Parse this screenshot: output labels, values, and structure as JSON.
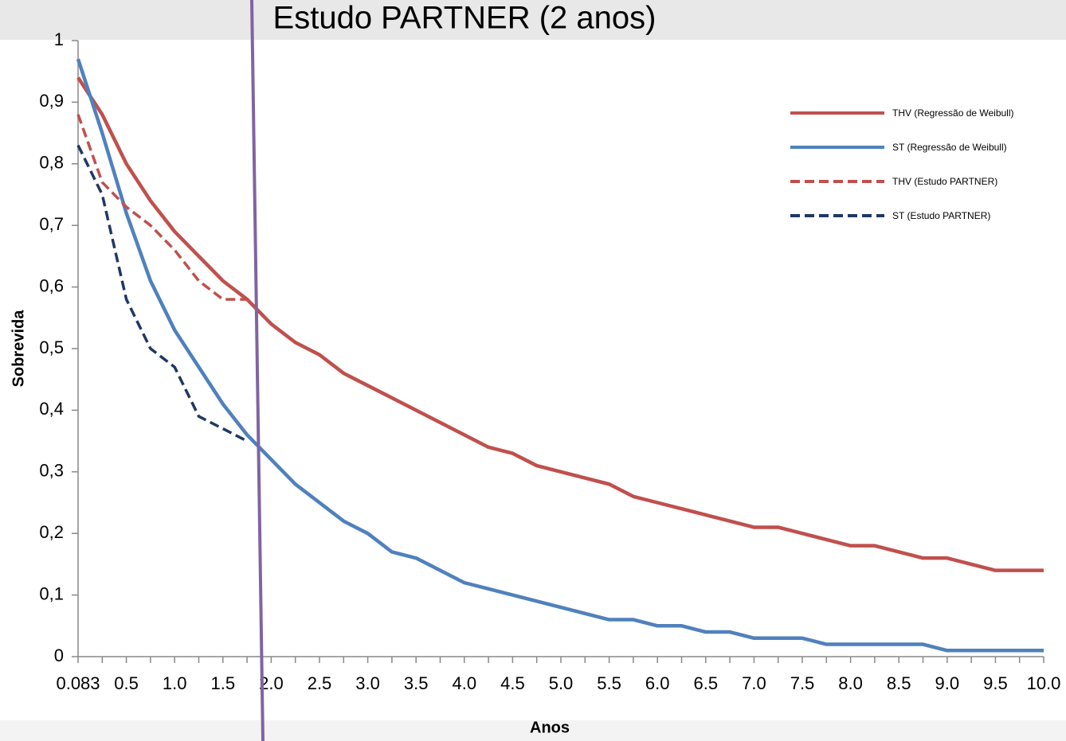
{
  "chart_data": {
    "type": "line",
    "title": "Estudo PARTNER (2 anos)",
    "x_label": "Anos",
    "y_label": "Sobrevida",
    "categories": [
      "0.083",
      null,
      "0.5",
      null,
      "1.0",
      null,
      "1.5",
      null,
      "2.0",
      null,
      "2.5",
      null,
      "3.0",
      null,
      "3.5",
      null,
      "4.0",
      null,
      "4.5",
      null,
      "5.0",
      null,
      "5.5",
      null,
      "6.0",
      null,
      "6.5",
      null,
      "7.0",
      null,
      "7.5",
      null,
      "8.0",
      null,
      "8.5",
      null,
      "9.0",
      null,
      "9.5",
      null,
      "10.0"
    ],
    "series": [
      {
        "name": "THV (Regressão de Weibull)",
        "color": "#c0504d",
        "dashed": false,
        "values": [
          0.94,
          0.88,
          0.8,
          0.74,
          0.69,
          0.65,
          0.61,
          0.58,
          0.54,
          0.51,
          0.49,
          0.46,
          0.44,
          0.42,
          0.4,
          0.38,
          0.36,
          0.34,
          0.33,
          0.31,
          0.3,
          0.29,
          0.28,
          0.26,
          0.25,
          0.24,
          0.23,
          0.22,
          0.21,
          0.21,
          0.2,
          0.19,
          0.18,
          0.18,
          0.17,
          0.16,
          0.16,
          0.15,
          0.14,
          0.14,
          0.14
        ]
      },
      {
        "name": "ST (Regressão de Weibull)",
        "color": "#4f81bd",
        "dashed": false,
        "values": [
          0.97,
          0.85,
          0.72,
          0.61,
          0.53,
          0.47,
          0.41,
          0.36,
          0.32,
          0.28,
          0.25,
          0.22,
          0.2,
          0.17,
          0.16,
          0.14,
          0.12,
          0.11,
          0.1,
          0.09,
          0.08,
          0.07,
          0.06,
          0.06,
          0.05,
          0.05,
          0.04,
          0.04,
          0.03,
          0.03,
          0.03,
          0.02,
          0.02,
          0.02,
          0.02,
          0.02,
          0.01,
          0.01,
          0.01,
          0.01,
          0.01
        ]
      },
      {
        "name": "THV (Estudo PARTNER)",
        "color": "#c0504d",
        "dashed": true,
        "values": [
          0.88,
          0.77,
          0.73,
          0.7,
          0.66,
          0.61,
          0.58,
          0.58,
          null,
          null,
          null,
          null,
          null,
          null,
          null,
          null,
          null,
          null,
          null,
          null,
          null,
          null,
          null,
          null,
          null,
          null,
          null,
          null,
          null,
          null,
          null,
          null,
          null,
          null,
          null,
          null,
          null,
          null,
          null,
          null,
          null
        ]
      },
      {
        "name": "ST (Estudo PARTNER)",
        "color": "#1f3864",
        "dashed": true,
        "values": [
          0.83,
          0.75,
          0.58,
          0.5,
          0.47,
          0.39,
          0.37,
          0.35,
          null,
          null,
          null,
          null,
          null,
          null,
          null,
          null,
          null,
          null,
          null,
          null,
          null,
          null,
          null,
          null,
          null,
          null,
          null,
          null,
          null,
          null,
          null,
          null,
          null,
          null,
          null,
          null,
          null,
          null,
          null,
          null,
          null
        ]
      }
    ],
    "ylim": [
      0,
      1
    ],
    "yticks": [
      0,
      {
        "value": 0.1,
        "label": "0,1"
      },
      {
        "value": 0.2,
        "label": "0,2"
      },
      {
        "value": 0.3,
        "label": "0,3"
      },
      {
        "value": 0.4,
        "label": "0,4"
      },
      {
        "value": 0.5,
        "label": "0,5"
      },
      {
        "value": 0.6,
        "label": "0,6"
      },
      {
        "value": 0.7,
        "label": "0,7"
      },
      {
        "value": 0.8,
        "label": "0,8"
      },
      {
        "value": 0.9,
        "label": "0,9"
      },
      1
    ],
    "grid": false,
    "legend": "right"
  }
}
